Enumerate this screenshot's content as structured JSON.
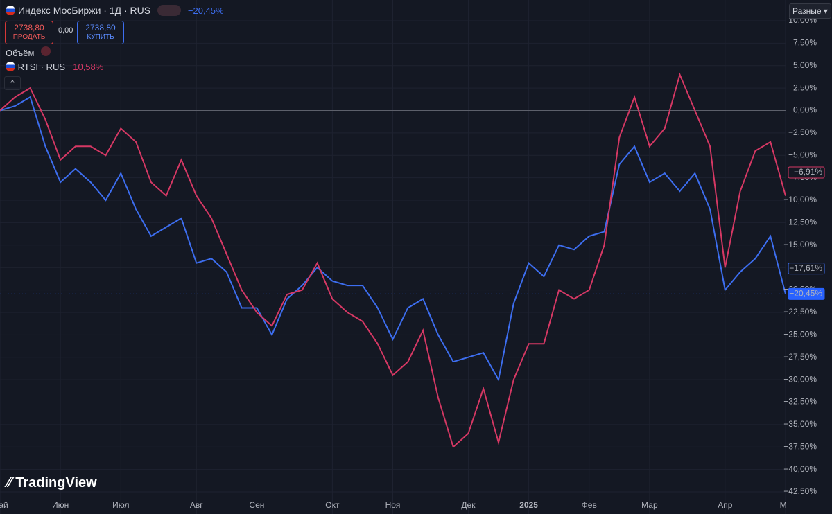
{
  "header": {
    "symbol": "Индекс МосБиржи · 1Д · RUS",
    "change": "−20,45%",
    "sell_price": "2738,80",
    "sell": "ПРОДАТЬ",
    "spread": "0,00",
    "buy_price": "2738,80",
    "buy": "КУПИТЬ",
    "volume": "Объём",
    "compare_change": "−10,58%",
    "scale_mode": "Разные",
    "brand": "TradingView"
  },
  "chart_data": {
    "type": "line",
    "categories": [
      "Май",
      null,
      null,
      null,
      "Июн",
      null,
      null,
      null,
      "Июл",
      null,
      null,
      null,
      null,
      "Авг",
      null,
      null,
      null,
      "Сен",
      null,
      null,
      null,
      null,
      "Окт",
      null,
      null,
      null,
      "Ноя",
      null,
      null,
      null,
      null,
      "Дек",
      null,
      null,
      null,
      "2025",
      null,
      null,
      null,
      "Фев",
      null,
      null,
      null,
      "Мар",
      null,
      null,
      null,
      null,
      "Апр",
      null,
      null,
      null,
      "Ма"
    ],
    "series": [
      {
        "name": "Индекс МосБиржи · 1Д · RUS",
        "color": "#3d6ef0",
        "values": [
          0,
          0.5,
          1.5,
          -4,
          -8,
          -6.5,
          -8,
          -10,
          -7,
          -11,
          -14,
          -13,
          -12,
          -17,
          -16.5,
          -18,
          -22,
          -22,
          -25,
          -21,
          -19.5,
          -17.5,
          -19,
          -19.5,
          -19.5,
          -22,
          -25.5,
          -22,
          -21,
          -25,
          -28,
          -27.5,
          -27,
          -30,
          -21.5,
          -17,
          -18.5,
          -15,
          -15.5,
          -14,
          -13.5,
          -6,
          -4,
          -8,
          -7,
          -9,
          -7,
          -11,
          -20,
          -18,
          -16.5,
          -14,
          -20.45
        ]
      },
      {
        "name": "RTSI · RUS",
        "color": "#d63864",
        "values": [
          0,
          1.5,
          2.5,
          -1,
          -5.5,
          -4,
          -4,
          -5,
          -2,
          -3.5,
          -8,
          -9.5,
          -5.5,
          -9.5,
          -12,
          -16,
          -20,
          -22.5,
          -24,
          -20.5,
          -20,
          -17,
          -21,
          -22.5,
          -23.5,
          -26,
          -29.5,
          -28,
          -24.5,
          -32,
          -37.5,
          -36,
          -31,
          -37,
          -30,
          -26,
          -26,
          -20,
          -21,
          -20,
          -15,
          -3,
          1.5,
          -4,
          -2,
          4,
          0,
          -4,
          -17.5,
          -9,
          -4.5,
          -3.5,
          -9.5
        ]
      }
    ],
    "price_labels": [
      {
        "value": -6.91,
        "label": "−6,91%",
        "color": "#d63864"
      },
      {
        "value": -17.61,
        "label": "−17,61%",
        "color": "#3d6ef0"
      },
      {
        "value": -20.45,
        "label": "−20,45%",
        "color": "#2962ff"
      }
    ],
    "ylim": [
      -42.5,
      10
    ],
    "yticks": [
      {
        "value": 10,
        "label": "10,00%"
      },
      {
        "value": 7.5,
        "label": "7,50%"
      },
      {
        "value": 5,
        "label": "5,00%"
      },
      {
        "value": 2.5,
        "label": "2,50%"
      },
      {
        "value": 0,
        "label": "0,00%"
      },
      {
        "value": -2.5,
        "label": "−2,50%"
      },
      {
        "value": -5,
        "label": "−5,00%"
      },
      {
        "value": -7.5,
        "label": "−7,50%"
      },
      {
        "value": -10,
        "label": "−10,00%"
      },
      {
        "value": -12.5,
        "label": "−12,50%"
      },
      {
        "value": -15,
        "label": "−15,00%"
      },
      {
        "value": -17.5,
        "label": "−17,50%"
      },
      {
        "value": -20,
        "label": "−20,00%"
      },
      {
        "value": -22.5,
        "label": "−22,50%"
      },
      {
        "value": -25,
        "label": "−25,00%"
      },
      {
        "value": -27.5,
        "label": "−27,50%"
      },
      {
        "value": -30,
        "label": "−30,00%"
      },
      {
        "value": -32.5,
        "label": "−32,50%"
      },
      {
        "value": -35,
        "label": "−35,00%"
      },
      {
        "value": -37.5,
        "label": "−37,50%"
      },
      {
        "value": -40,
        "label": "−40,00%"
      },
      {
        "value": -42.5,
        "label": "−42,50%"
      }
    ],
    "grid": true
  }
}
